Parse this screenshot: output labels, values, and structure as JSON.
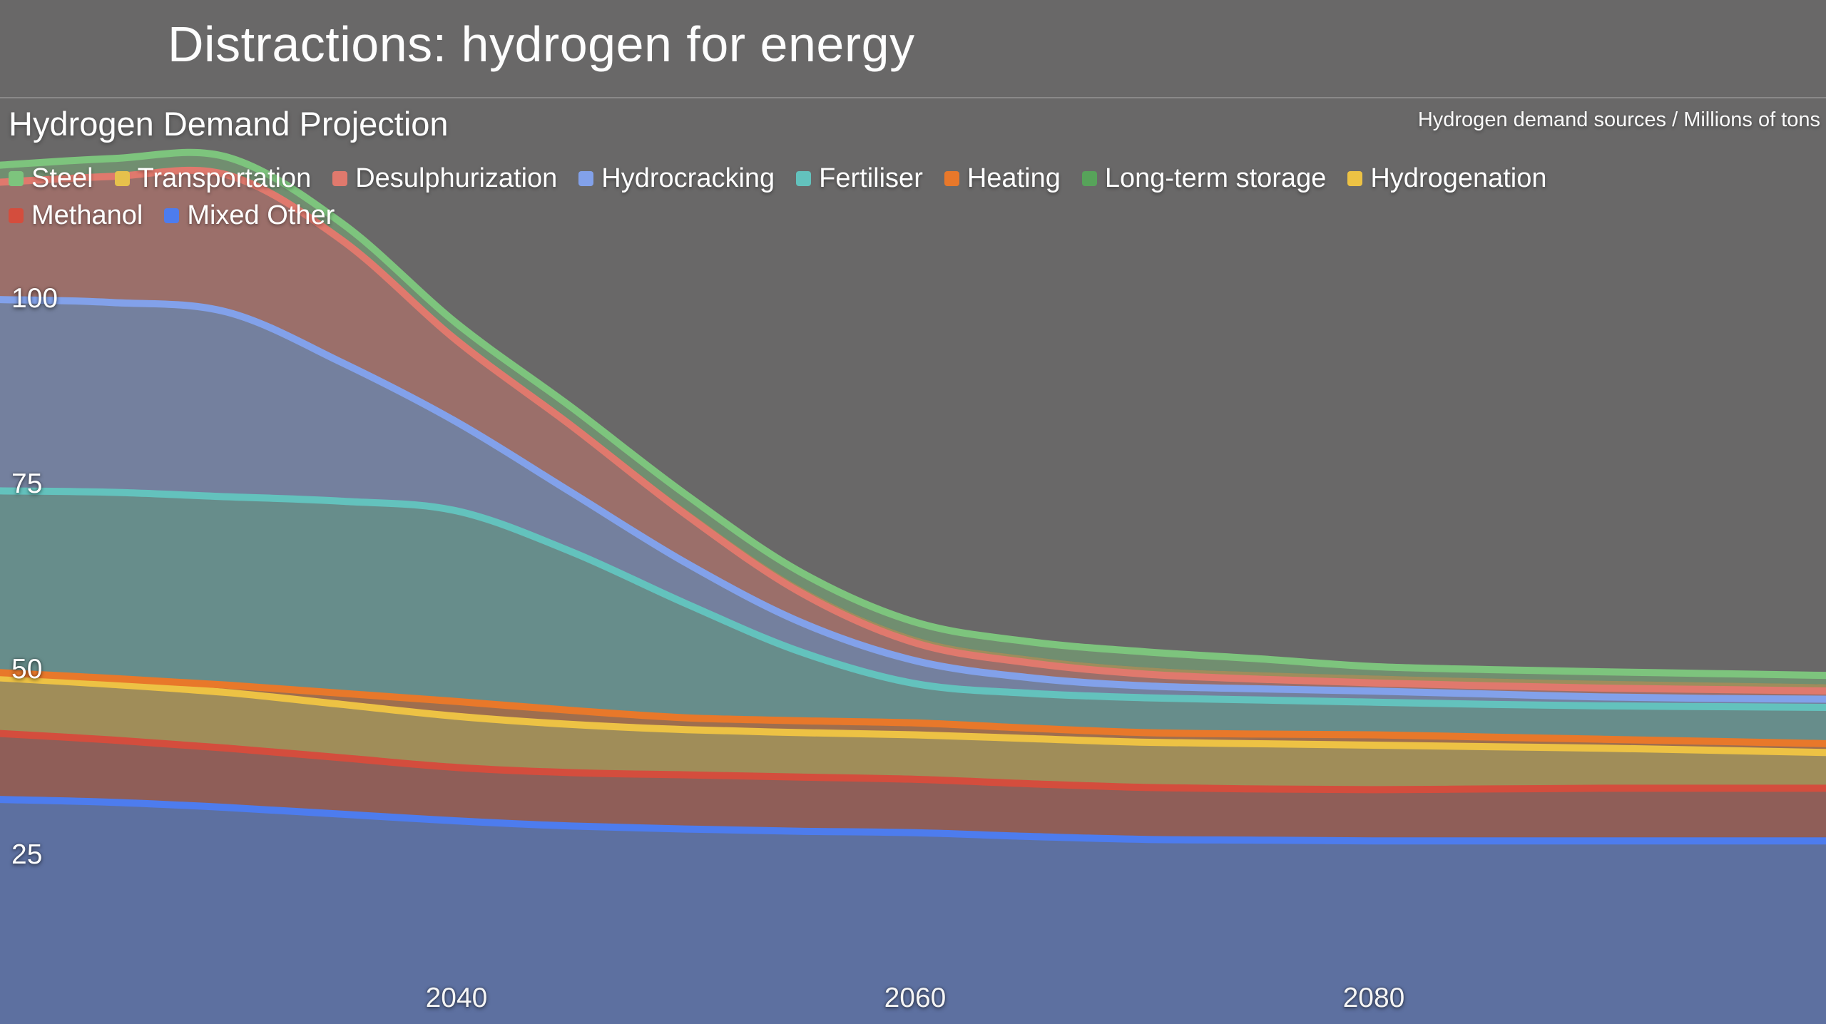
{
  "page": {
    "title": "Distractions: hydrogen for energy",
    "background_color": "#696868",
    "text_color": "#ffffff"
  },
  "chart": {
    "header": "Hydrogen Demand Projection",
    "note": "Hydrogen demand sources / Millions of tons"
  },
  "legend": {
    "rows": [
      [
        "Steel",
        "Transportation",
        "Desulphurization",
        "Hydrocracking",
        "Fertiliser",
        "Heating",
        "Long-term storage",
        "Hydrogenation"
      ],
      [
        "Methanol",
        "Mixed Other"
      ]
    ]
  },
  "chart_data": {
    "type": "area",
    "stacked": true,
    "title": "Hydrogen Demand Projection",
    "ylabel": "Millions of tons",
    "xlabel": "",
    "x": [
      2020,
      2025,
      2030,
      2035,
      2040,
      2045,
      2050,
      2055,
      2060,
      2065,
      2070,
      2075,
      2080,
      2085,
      2090,
      2095,
      2100
    ],
    "xlim": [
      2020,
      2100
    ],
    "baseline": 0,
    "grid": false,
    "y_ticks": [
      100,
      75,
      50,
      25
    ],
    "x_ticks": [
      2040,
      2060,
      2080
    ],
    "legend_position": "top-left",
    "stack_order_bottom_to_top": [
      "Mixed Other",
      "Methanol",
      "Hydrogenation",
      "Long-term storage",
      "Heating",
      "Fertiliser",
      "Hydrocracking",
      "Desulphurization",
      "Transportation",
      "Steel"
    ],
    "series": [
      {
        "name": "Steel",
        "color": "#7dc47d",
        "stroke": true,
        "values": [
          2.2,
          2.3,
          2.2,
          2.0,
          1.8,
          1.9,
          2.0,
          2.0,
          2.0,
          2.0,
          2.1,
          1.8,
          1.2,
          1.2,
          1.2,
          1.2,
          1.2
        ]
      },
      {
        "name": "Transportation",
        "color": "#e6c14c",
        "stroke": false,
        "values": [
          0.1,
          0.1,
          0.2,
          0.3,
          0.5,
          0.6,
          0.7,
          0.75,
          0.8,
          0.85,
          0.9,
          0.95,
          1.0,
          1.0,
          1.0,
          0.95,
          0.9
        ]
      },
      {
        "name": "Desulphurization",
        "color": "#e0796d",
        "stroke": true,
        "values": [
          15.8,
          17.0,
          18.5,
          16.5,
          11.0,
          9.0,
          6.5,
          4.0,
          2.4,
          2.0,
          1.6,
          1.3,
          1.1,
          1.1,
          1.2,
          1.2,
          1.1
        ]
      },
      {
        "name": "Hydrocracking",
        "color": "#82a1ea",
        "stroke": true,
        "values": [
          25.8,
          25.6,
          24.9,
          18.7,
          12.0,
          8.0,
          5.5,
          4.0,
          3.1,
          2.1,
          1.6,
          1.5,
          1.5,
          1.4,
          1.2,
          1.1,
          1.1
        ]
      },
      {
        "name": "Fertiliser",
        "color": "#63c2bd",
        "stroke": true,
        "values": [
          24.5,
          25.1,
          25.4,
          25.9,
          25.7,
          21.4,
          15.4,
          9.3,
          5.3,
          4.7,
          4.7,
          4.6,
          4.4,
          4.4,
          4.5,
          4.7,
          4.9
        ]
      },
      {
        "name": "Heating",
        "color": "#e8782a",
        "stroke": true,
        "values": [
          0.7,
          0.8,
          1.0,
          1.5,
          2.0,
          1.9,
          1.6,
          1.6,
          1.6,
          1.4,
          1.3,
          1.3,
          1.4,
          1.3,
          1.2,
          1.2,
          1.2
        ]
      },
      {
        "name": "Long-term storage",
        "color": "#57a35a",
        "stroke": false,
        "values": [
          0,
          0,
          0,
          0,
          0,
          0,
          0,
          0,
          0,
          0,
          0,
          0,
          0,
          0,
          0,
          0,
          0
        ]
      },
      {
        "name": "Hydrogenation",
        "color": "#edc244",
        "stroke": true,
        "values": [
          7.5,
          7.5,
          7.5,
          7.2,
          6.9,
          6.5,
          6.1,
          6.0,
          6.0,
          6.1,
          6.1,
          6.1,
          6.0,
          5.7,
          5.4,
          5.1,
          4.8
        ]
      },
      {
        "name": "Methanol",
        "color": "#d44d3d",
        "stroke": true,
        "fill_opacity": 0.36,
        "values": [
          8.9,
          8.4,
          8.0,
          7.6,
          7.2,
          7.2,
          7.3,
          7.3,
          7.2,
          7.1,
          7.0,
          6.9,
          6.9,
          7.0,
          7.1,
          7.1,
          7.1
        ]
      },
      {
        "name": "Mixed Other",
        "color": "#4d7cee",
        "stroke": true,
        "values": [
          32.6,
          32.2,
          31.5,
          30.6,
          29.7,
          29.0,
          28.6,
          28.3,
          28.1,
          27.6,
          27.2,
          27.1,
          27.0,
          27.0,
          27.0,
          27.0,
          27.0
        ]
      }
    ]
  }
}
